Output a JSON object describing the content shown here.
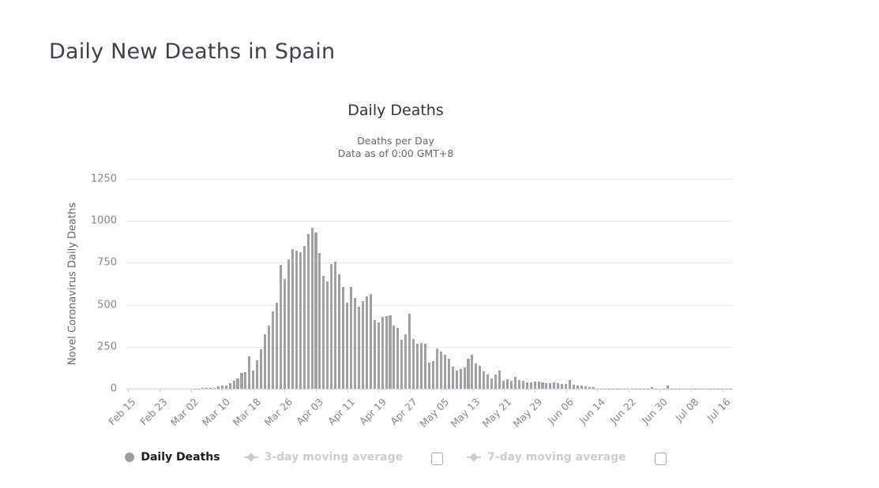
{
  "page": {
    "title": "Daily New Deaths in Spain"
  },
  "chart_data": {
    "type": "bar",
    "title": "Daily Deaths",
    "subtitle1": "Deaths per Day",
    "subtitle2": "Data as of 0:00 GMT+8",
    "ylabel": "Novel Coronavirus Daily Deaths",
    "series_name": "Daily Deaths",
    "ylim": [
      0,
      1250
    ],
    "yticks": [
      0,
      250,
      500,
      750,
      1000,
      1250
    ],
    "grid": true,
    "bar_color": "#a1a1a1",
    "axis_line_color": "#ccd6eb",
    "gridline_color": "#e6e6e6",
    "xtick_interval_days": 8,
    "xticklabels": [
      "Feb 15",
      "Feb 23",
      "Mar 02",
      "Mar 10",
      "Mar 18",
      "Mar 26",
      "Apr 03",
      "Apr 11",
      "Apr 19",
      "Apr 27",
      "May 05",
      "May 13",
      "May 21",
      "May 29",
      "Jun 06",
      "Jun 14",
      "Jun 22",
      "Jun 30",
      "Jul 08",
      "Jul 16"
    ],
    "dates": [
      "Feb 15",
      "Feb 16",
      "Feb 17",
      "Feb 18",
      "Feb 19",
      "Feb 20",
      "Feb 21",
      "Feb 22",
      "Feb 23",
      "Feb 24",
      "Feb 25",
      "Feb 26",
      "Feb 27",
      "Feb 28",
      "Feb 29",
      "Mar 01",
      "Mar 02",
      "Mar 03",
      "Mar 04",
      "Mar 05",
      "Mar 06",
      "Mar 07",
      "Mar 08",
      "Mar 09",
      "Mar 10",
      "Mar 11",
      "Mar 12",
      "Mar 13",
      "Mar 14",
      "Mar 15",
      "Mar 16",
      "Mar 17",
      "Mar 18",
      "Mar 19",
      "Mar 20",
      "Mar 21",
      "Mar 22",
      "Mar 23",
      "Mar 24",
      "Mar 25",
      "Mar 26",
      "Mar 27",
      "Mar 28",
      "Mar 29",
      "Mar 30",
      "Mar 31",
      "Apr 01",
      "Apr 02",
      "Apr 03",
      "Apr 04",
      "Apr 05",
      "Apr 06",
      "Apr 07",
      "Apr 08",
      "Apr 09",
      "Apr 10",
      "Apr 11",
      "Apr 12",
      "Apr 13",
      "Apr 14",
      "Apr 15",
      "Apr 16",
      "Apr 17",
      "Apr 18",
      "Apr 19",
      "Apr 20",
      "Apr 21",
      "Apr 22",
      "Apr 23",
      "Apr 24",
      "Apr 25",
      "Apr 26",
      "Apr 27",
      "Apr 28",
      "Apr 29",
      "Apr 30",
      "May 01",
      "May 02",
      "May 03",
      "May 04",
      "May 05",
      "May 06",
      "May 07",
      "May 08",
      "May 09",
      "May 10",
      "May 11",
      "May 12",
      "May 13",
      "May 14",
      "May 15",
      "May 16",
      "May 17",
      "May 18",
      "May 19",
      "May 20",
      "May 21",
      "May 22",
      "May 23",
      "May 24",
      "May 25",
      "May 26",
      "May 27",
      "May 28",
      "May 29",
      "May 30",
      "May 31",
      "Jun 01",
      "Jun 02",
      "Jun 03",
      "Jun 04",
      "Jun 05",
      "Jun 06",
      "Jun 07",
      "Jun 08",
      "Jun 09",
      "Jun 10",
      "Jun 11",
      "Jun 12",
      "Jun 13",
      "Jun 14",
      "Jun 15",
      "Jun 16",
      "Jun 17",
      "Jun 18",
      "Jun 19",
      "Jun 20",
      "Jun 21",
      "Jun 22",
      "Jun 23",
      "Jun 24",
      "Jun 25",
      "Jun 26",
      "Jun 27",
      "Jun 28",
      "Jun 29",
      "Jun 30",
      "Jul 01",
      "Jul 02",
      "Jul 03",
      "Jul 04",
      "Jul 05",
      "Jul 06",
      "Jul 07",
      "Jul 08",
      "Jul 09",
      "Jul 10",
      "Jul 11",
      "Jul 12",
      "Jul 13",
      "Jul 14",
      "Jul 15",
      "Jul 16",
      "Jul 17",
      "Jul 18"
    ],
    "values": [
      0,
      0,
      0,
      0,
      0,
      0,
      0,
      0,
      0,
      0,
      0,
      0,
      0,
      0,
      0,
      0,
      0,
      1,
      2,
      3,
      5,
      5,
      7,
      13,
      18,
      19,
      31,
      48,
      63,
      96,
      97,
      191,
      107,
      169,
      235,
      324,
      375,
      462,
      514,
      738,
      655,
      769,
      832,
      821,
      812,
      849,
      923,
      961,
      932,
      809,
      674,
      637,
      743,
      757,
      683,
      605,
      510,
      605,
      540,
      490,
      523,
      551,
      565,
      410,
      395,
      426,
      431,
      435,
      376,
      363,
      290,
      326,
      445,
      294,
      268,
      274,
      269,
      156,
      164,
      242,
      219,
      203,
      180,
      133,
      110,
      117,
      128,
      180,
      203,
      150,
      138,
      102,
      87,
      59,
      83,
      110,
      48,
      56,
      48,
      70,
      50,
      47,
      38,
      39,
      43,
      43,
      36,
      34,
      32,
      36,
      32,
      30,
      28,
      52,
      25,
      20,
      17,
      12,
      10,
      8,
      2,
      2,
      1,
      2,
      1,
      2,
      1,
      1,
      2,
      1,
      2,
      1,
      2,
      1,
      8,
      1,
      2,
      1,
      17,
      2,
      1,
      2,
      1,
      1,
      2,
      1,
      2,
      1,
      1,
      2,
      1,
      2,
      1,
      2,
      1
    ],
    "legend": {
      "items": [
        {
          "label": "Daily Deaths",
          "marker": "circle",
          "active": true,
          "has_checkbox": false
        },
        {
          "label": "3-day moving average",
          "marker": "line-diamond",
          "active": false,
          "has_checkbox": true,
          "checkbox_checked": false
        },
        {
          "label": "7-day moving average",
          "marker": "line-diamond",
          "active": false,
          "has_checkbox": true,
          "checkbox_checked": false
        }
      ]
    }
  }
}
